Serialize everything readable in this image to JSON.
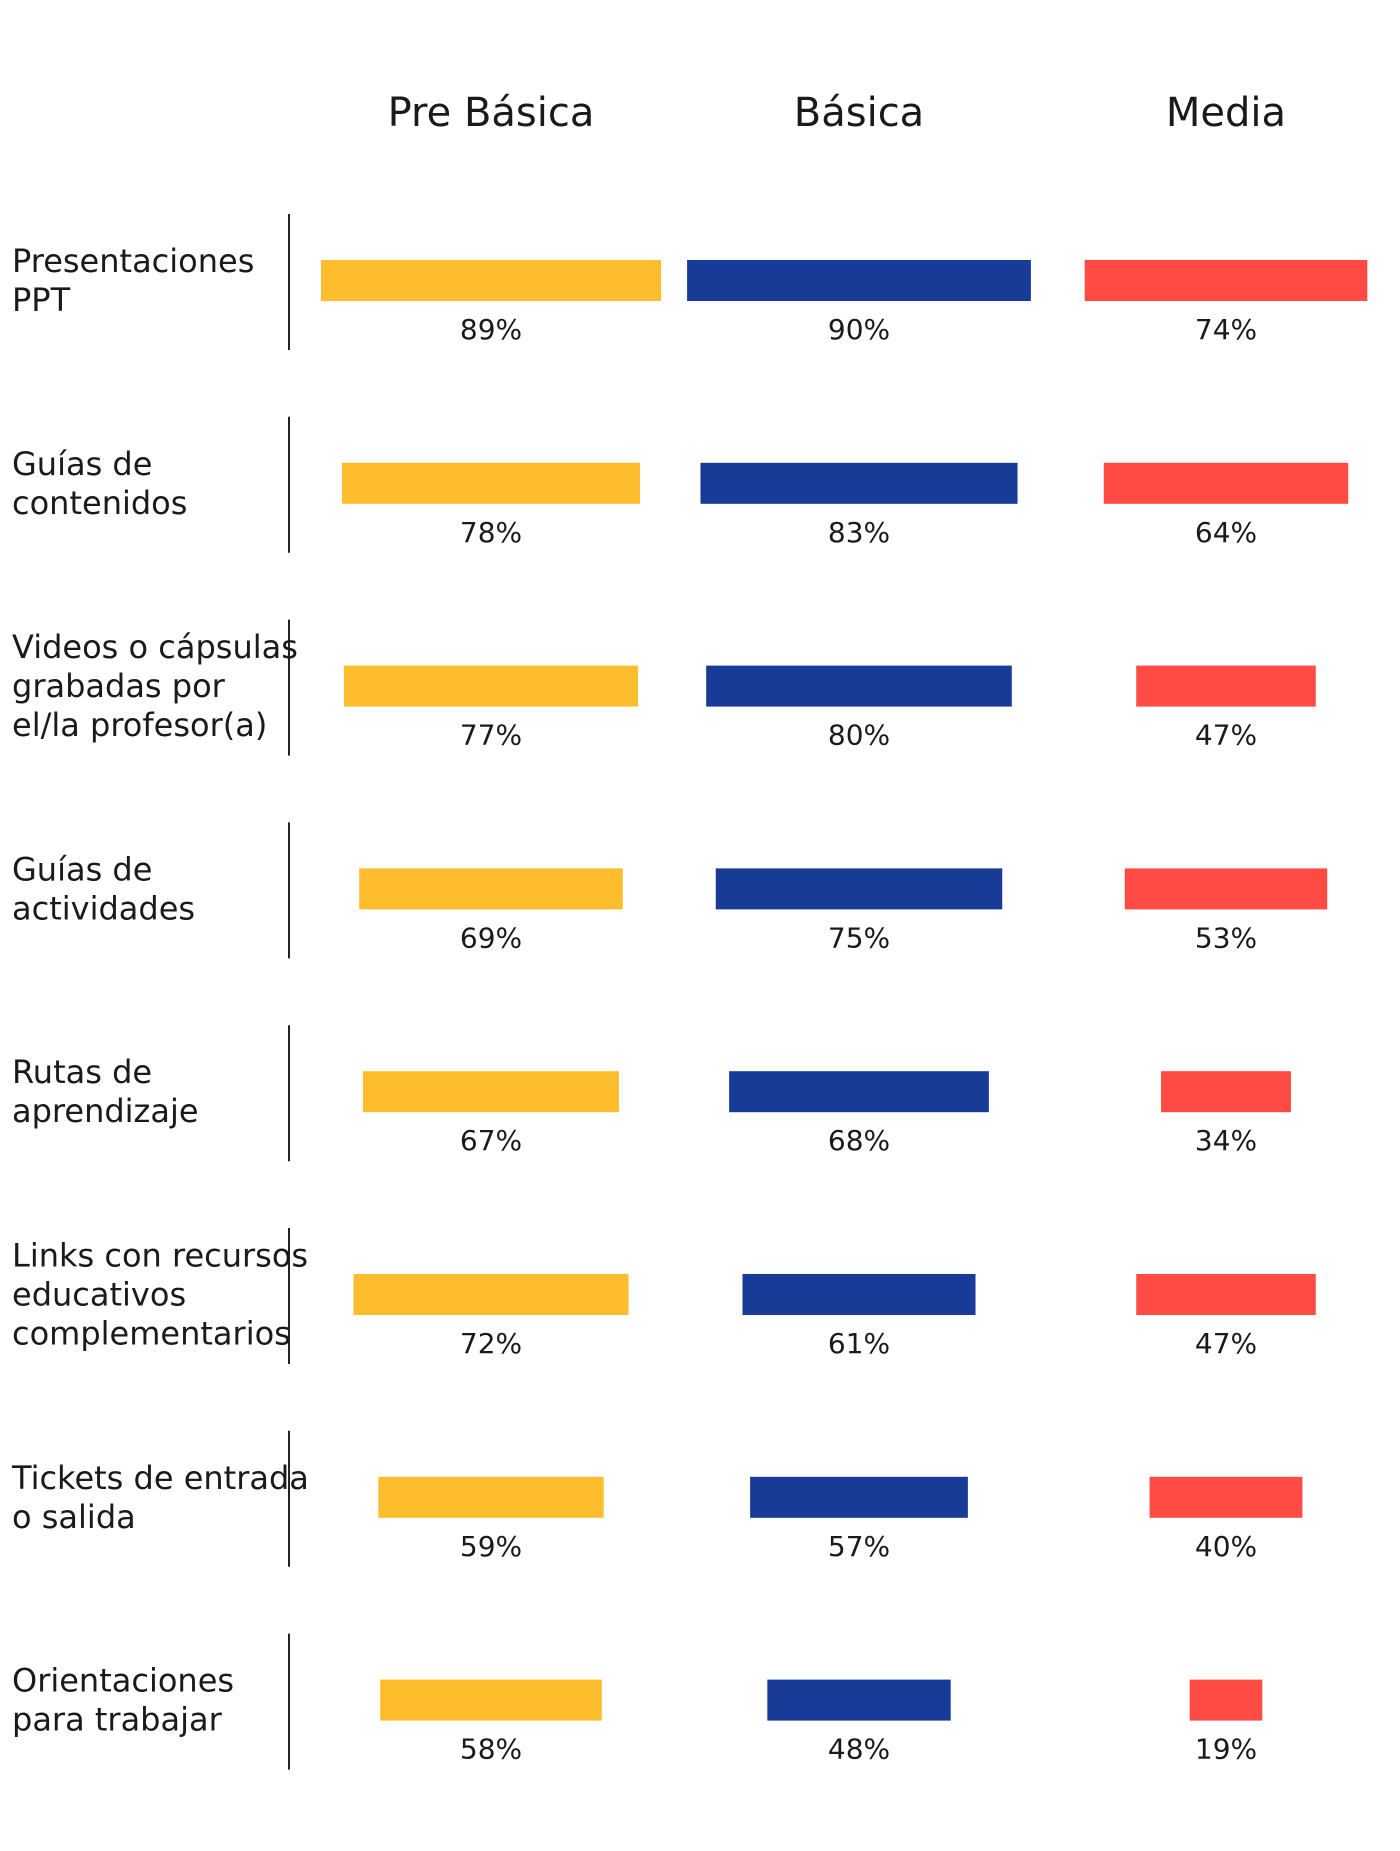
{
  "chart_data": {
    "type": "bar",
    "orientation": "horizontal, centered bars in small multiples",
    "title": "",
    "xlabel": "",
    "ylabel": "",
    "xlim": [
      0,
      100
    ],
    "unit": "%",
    "grid": false,
    "legend": "none (series shown as column headers)",
    "categories": [
      [
        "Presentaciones",
        "PPT"
      ],
      [
        "Guías de",
        "contenidos"
      ],
      [
        "Videos o cápsulas",
        "grabadas por",
        "el/la profesor(a)"
      ],
      [
        "Guías de",
        "actividades"
      ],
      [
        "Rutas de",
        "aprendizaje"
      ],
      [
        "Links con recursos",
        "educativos",
        "complementarios"
      ],
      [
        "Tickets de entrada",
        "o salida"
      ],
      [
        "Orientaciones",
        "para trabajar"
      ]
    ],
    "series": [
      {
        "name": "Pre Básica",
        "color": "#FDBD2D",
        "values": [
          89,
          78,
          77,
          69,
          67,
          72,
          59,
          58
        ],
        "labels": [
          "89%",
          "78%",
          "77%",
          "69%",
          "67%",
          "72%",
          "59%",
          "58%"
        ]
      },
      {
        "name": "Básica",
        "color": "#173B96",
        "values": [
          90,
          83,
          80,
          75,
          68,
          61,
          57,
          48
        ],
        "labels": [
          "90%",
          "83%",
          "80%",
          "75%",
          "68%",
          "61%",
          "57%",
          "48%"
        ]
      },
      {
        "name": "Media",
        "color": "#FF4B43",
        "values": [
          74,
          64,
          47,
          53,
          34,
          47,
          40,
          19
        ],
        "labels": [
          "74%",
          "64%",
          "47%",
          "53%",
          "34%",
          "47%",
          "40%",
          "19%"
        ]
      }
    ]
  }
}
